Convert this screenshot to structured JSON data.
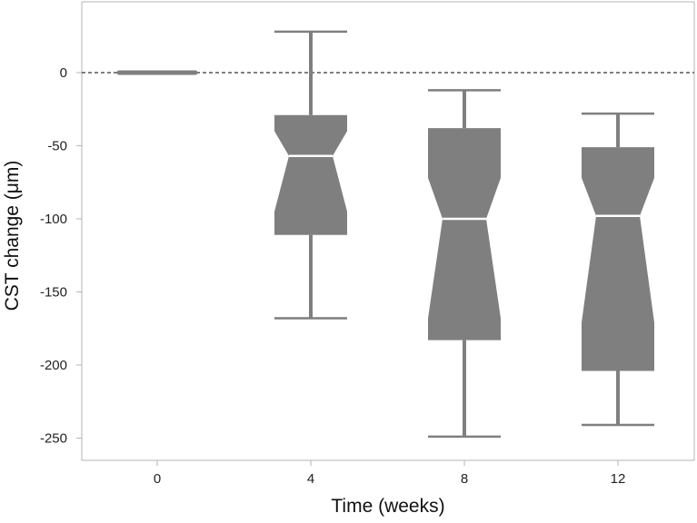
{
  "chart_data": {
    "type": "boxplot",
    "title": "",
    "xlabel": "Time (weeks)",
    "ylabel": "CST change (μm)",
    "categories": [
      "0",
      "4",
      "8",
      "12"
    ],
    "ylim": [
      -262,
      50
    ],
    "yticks": [
      0,
      -50,
      -100,
      -150,
      -200,
      -250
    ],
    "notched": true,
    "reference_line": {
      "y": 0,
      "style": "dashed"
    },
    "boxes": [
      {
        "category": "0",
        "min": 0,
        "q1": 0,
        "median": 0,
        "q3": 0,
        "max": 0,
        "notch_low": 0,
        "notch_high": 0
      },
      {
        "category": "4",
        "min": -168,
        "q1": -111,
        "median": -57,
        "q3": -29,
        "max": 28,
        "notch_low": -95,
        "notch_high": -40
      },
      {
        "category": "8",
        "min": -249,
        "q1": -183,
        "median": -100,
        "q3": -38,
        "max": -12,
        "notch_low": -168,
        "notch_high": -72
      },
      {
        "category": "12",
        "min": -241,
        "q1": -204,
        "median": -98,
        "q3": -51,
        "max": -28,
        "notch_low": -171,
        "notch_high": -72
      }
    ],
    "colors": {
      "box": "#7f7f7f",
      "median": "#ffffff",
      "whisker": "#7f7f7f",
      "frame": "#b5b5b5",
      "reference": "#333333"
    },
    "grid": false,
    "legend": "none"
  }
}
